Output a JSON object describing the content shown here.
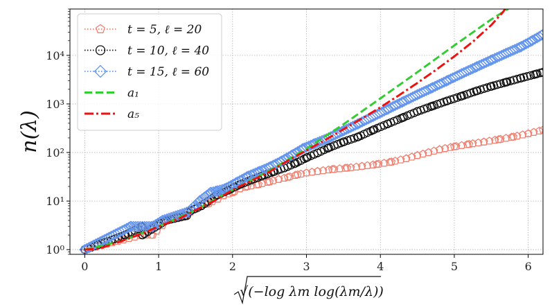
{
  "chart_data": {
    "type": "scatter",
    "title": "",
    "xlabel": "√(−log λm log(λm/λ))",
    "ylabel": "n(λ)",
    "xscale": "linear",
    "yscale": "log",
    "xlim": [
      -0.2,
      6.2
    ],
    "ylim": [
      0.8,
      90000
    ],
    "grid": true,
    "legend_position": "top-left",
    "x_ticks": [
      0,
      1,
      2,
      3,
      4,
      5,
      6
    ],
    "x_tick_labels": [
      "0",
      "1",
      "2",
      "3",
      "4",
      "5",
      "6"
    ],
    "y_ticks": [
      1,
      10,
      100,
      1000,
      10000
    ],
    "y_tick_labels": [
      "10⁰",
      "10¹",
      "10²",
      "10³",
      "10⁴"
    ],
    "series": [
      {
        "name": "t = 5, ℓ = 20",
        "style": "marker",
        "marker": "pentagon",
        "color": "#f08070",
        "points": [
          [
            0,
            1
          ],
          [
            0.78,
            2
          ],
          [
            0.92,
            2
          ],
          [
            1.12,
            4
          ],
          [
            1.37,
            5
          ],
          [
            1.43,
            6
          ],
          [
            1.58,
            8
          ],
          [
            1.68,
            9
          ],
          [
            1.8,
            11
          ],
          [
            1.88,
            13
          ],
          [
            2.0,
            15
          ],
          [
            2.1,
            18
          ],
          [
            2.2,
            20
          ],
          [
            2.35,
            22
          ],
          [
            2.5,
            25
          ],
          [
            2.62,
            28
          ],
          [
            2.75,
            31
          ],
          [
            2.88,
            35
          ],
          [
            3.0,
            38
          ],
          [
            3.15,
            41
          ],
          [
            3.35,
            45
          ],
          [
            3.55,
            48
          ],
          [
            3.75,
            52
          ],
          [
            3.95,
            57
          ],
          [
            4.15,
            64
          ],
          [
            4.35,
            75
          ],
          [
            4.5,
            87
          ],
          [
            4.65,
            100
          ],
          [
            4.8,
            115
          ],
          [
            5.0,
            132
          ],
          [
            5.2,
            148
          ],
          [
            5.4,
            165
          ],
          [
            5.6,
            185
          ],
          [
            5.8,
            210
          ],
          [
            6.0,
            245
          ],
          [
            6.2,
            290
          ]
        ]
      },
      {
        "name": "t = 10, ℓ = 40",
        "style": "marker",
        "marker": "circle",
        "color": "#111111",
        "points": [
          [
            0,
            1
          ],
          [
            0.55,
            2
          ],
          [
            0.78,
            3
          ],
          [
            0.78,
            2
          ],
          [
            1.1,
            4
          ],
          [
            1.38,
            5
          ],
          [
            1.4,
            6
          ],
          [
            1.58,
            8
          ],
          [
            1.78,
            13
          ],
          [
            1.95,
            17
          ],
          [
            2.1,
            22
          ],
          [
            2.25,
            27
          ],
          [
            2.4,
            33
          ],
          [
            2.55,
            40
          ],
          [
            2.7,
            48
          ],
          [
            2.85,
            60
          ],
          [
            3.0,
            78
          ],
          [
            3.15,
            98
          ],
          [
            3.3,
            125
          ],
          [
            3.5,
            165
          ],
          [
            3.7,
            210
          ],
          [
            3.9,
            290
          ],
          [
            4.1,
            390
          ],
          [
            4.3,
            520
          ],
          [
            4.5,
            700
          ],
          [
            4.7,
            900
          ],
          [
            4.9,
            1150
          ],
          [
            5.1,
            1450
          ],
          [
            5.3,
            1850
          ],
          [
            5.5,
            2300
          ],
          [
            5.7,
            2800
          ],
          [
            5.9,
            3400
          ],
          [
            6.1,
            4100
          ],
          [
            6.2,
            4500
          ]
        ]
      },
      {
        "name": "t = 15, ℓ = 60",
        "style": "marker",
        "marker": "diamond",
        "color": "#6495ed",
        "points": [
          [
            0,
            1
          ],
          [
            0.62,
            3
          ],
          [
            0.92,
            3
          ],
          [
            1.05,
            4
          ],
          [
            1.4,
            6
          ],
          [
            1.55,
            10
          ],
          [
            1.7,
            15
          ],
          [
            1.78,
            16
          ],
          [
            1.9,
            18
          ],
          [
            2.05,
            24
          ],
          [
            2.2,
            32
          ],
          [
            2.35,
            40
          ],
          [
            2.5,
            50
          ],
          [
            2.65,
            65
          ],
          [
            2.8,
            88
          ],
          [
            2.95,
            120
          ],
          [
            3.1,
            150
          ],
          [
            3.3,
            200
          ],
          [
            3.5,
            280
          ],
          [
            3.7,
            390
          ],
          [
            3.9,
            550
          ],
          [
            4.1,
            780
          ],
          [
            4.3,
            1100
          ],
          [
            4.5,
            1550
          ],
          [
            4.7,
            2150
          ],
          [
            4.9,
            3000
          ],
          [
            5.1,
            4200
          ],
          [
            5.3,
            5800
          ],
          [
            5.5,
            8000
          ],
          [
            5.7,
            11000
          ],
          [
            5.9,
            15000
          ],
          [
            6.05,
            20000
          ],
          [
            6.2,
            27000
          ]
        ]
      },
      {
        "name": "a₁",
        "style": "dashed-line",
        "color": "#33cc33",
        "points": [
          [
            0,
            1
          ],
          [
            0.5,
            1.5
          ],
          [
            1,
            3
          ],
          [
            1.5,
            6.5
          ],
          [
            2,
            17
          ],
          [
            2.5,
            42
          ],
          [
            3,
            120
          ],
          [
            3.5,
            380
          ],
          [
            4,
            1300
          ],
          [
            4.5,
            4500
          ],
          [
            5,
            16000
          ],
          [
            5.5,
            55000
          ],
          [
            5.75,
            95000
          ]
        ]
      },
      {
        "name": "a₅",
        "style": "dashdot-line",
        "color": "#ee1111",
        "points": [
          [
            0,
            1
          ],
          [
            0.2,
            1.05
          ],
          [
            0.5,
            1.5
          ],
          [
            0.8,
            2.2
          ],
          [
            1,
            3
          ],
          [
            1.3,
            4.5
          ],
          [
            1.5,
            6.5
          ],
          [
            1.75,
            10
          ],
          [
            2,
            17
          ],
          [
            2.25,
            26
          ],
          [
            2.5,
            40
          ],
          [
            2.75,
            68
          ],
          [
            3,
            110
          ],
          [
            3.25,
            180
          ],
          [
            3.5,
            300
          ],
          [
            3.75,
            500
          ],
          [
            4,
            850
          ],
          [
            4.25,
            1500
          ],
          [
            4.5,
            2700
          ],
          [
            4.75,
            5000
          ],
          [
            5,
            9500
          ],
          [
            5.25,
            19000
          ],
          [
            5.5,
            42000
          ],
          [
            5.65,
            75000
          ],
          [
            5.7,
            95000
          ]
        ]
      }
    ]
  }
}
